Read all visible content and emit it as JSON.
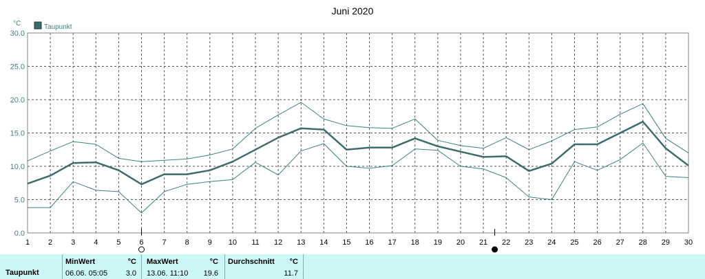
{
  "chart_data": {
    "type": "line",
    "title": "Juni 2020",
    "ylabel": "°C",
    "ylim": [
      0,
      30
    ],
    "yticks": [
      "0.0",
      "5.0",
      "10.0",
      "15.0",
      "20.0",
      "25.0",
      "30.0"
    ],
    "x": [
      1,
      2,
      3,
      4,
      5,
      6,
      7,
      8,
      9,
      10,
      11,
      12,
      13,
      14,
      15,
      16,
      17,
      18,
      19,
      20,
      21,
      22,
      23,
      24,
      25,
      26,
      27,
      28,
      29,
      30
    ],
    "grid": true,
    "legend_position": "top-left",
    "series": [
      {
        "name": "Taupunkt",
        "role": "mean",
        "values": [
          7.4,
          8.6,
          10.5,
          10.6,
          9.4,
          7.3,
          8.8,
          8.8,
          9.4,
          10.7,
          12.5,
          14.3,
          15.7,
          15.5,
          12.5,
          12.8,
          12.8,
          14.2,
          13.0,
          12.2,
          11.4,
          11.5,
          9.3,
          10.4,
          13.3,
          13.3,
          15.0,
          16.7,
          12.7,
          10.1
        ]
      },
      {
        "role": "max",
        "values": [
          10.8,
          12.3,
          13.7,
          13.3,
          11.2,
          10.7,
          10.9,
          11.1,
          11.7,
          12.6,
          15.7,
          17.7,
          19.6,
          17.1,
          16.1,
          15.8,
          15.7,
          17.1,
          13.9,
          13.1,
          12.7,
          14.3,
          12.5,
          13.8,
          15.5,
          15.9,
          17.8,
          19.4,
          14.2,
          12.0
        ]
      },
      {
        "role": "min",
        "values": [
          3.8,
          3.8,
          7.7,
          6.4,
          6.2,
          3.0,
          6.2,
          7.3,
          7.7,
          8.0,
          10.6,
          8.7,
          12.3,
          13.4,
          10.0,
          9.7,
          10.1,
          12.6,
          12.4,
          10.0,
          9.6,
          8.3,
          5.4,
          5.0,
          10.7,
          9.4,
          11.0,
          13.5,
          8.5,
          8.3
        ]
      }
    ],
    "colors": {
      "mean": "#3e6b6b",
      "band": "#3b8080",
      "grid": "#555555",
      "axis": "#808080",
      "label": "#3f7f7f"
    },
    "moon_markers": [
      {
        "day": 6,
        "phase": "new"
      },
      {
        "day": 21.5,
        "phase": "full"
      }
    ]
  },
  "table": {
    "row_label": "Taupunkt",
    "min": {
      "header": "MinWert",
      "unit": "°C",
      "datetime": "06.06.  05:05",
      "value": "3.0"
    },
    "max": {
      "header": "MaxWert",
      "unit": "°C",
      "datetime": "13.06.  11:10",
      "value": "19.6"
    },
    "avg": {
      "header": "Durchschnitt",
      "unit": "°C",
      "value": "11.7"
    }
  }
}
